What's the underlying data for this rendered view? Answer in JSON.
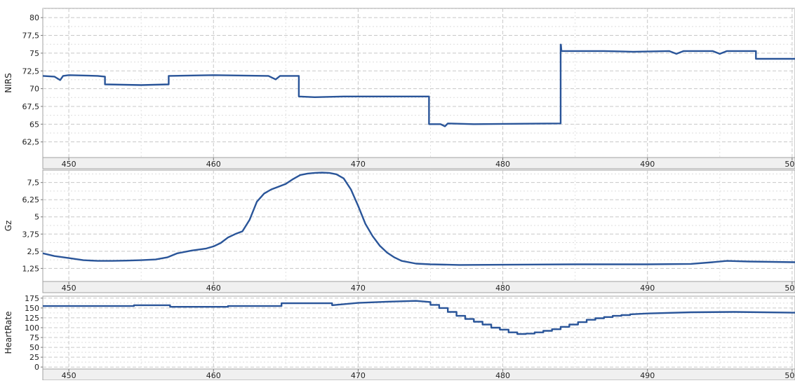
{
  "theme": {
    "line_color": "#2a5599",
    "plot_bg": "#ffffff",
    "axis_strip_bg": "#f0f0f0",
    "grid_color": "#c8c8c8",
    "border_color": "#a0a0a0"
  },
  "chart_data": [
    {
      "type": "line",
      "ylabel": "NIRS",
      "xlim": [
        448.2,
        500.2
      ],
      "ylim": [
        60.3,
        81.3
      ],
      "yticks": [
        62.5,
        65,
        67.5,
        70,
        72.5,
        75,
        77.5,
        80
      ],
      "ytick_labels": [
        "62,5",
        "65",
        "67,5",
        "70",
        "72,5",
        "75",
        "77,5",
        "80"
      ],
      "xticks": [
        450,
        460,
        470,
        480,
        490,
        500
      ],
      "xtick_labels": [
        "450",
        "460",
        "470",
        "480",
        "490",
        "500"
      ],
      "grid": true,
      "series": [
        {
          "x": [
            448.2,
            449.0,
            449.4,
            449.6,
            450.0,
            452.0,
            452.5,
            452.5,
            455.0,
            456.9,
            456.9,
            460.0,
            463.8,
            464.3,
            464.6,
            465.9,
            465.9,
            467.0,
            469.0,
            474.9,
            474.9,
            475.7,
            476.0,
            476.2,
            478.0,
            484.0,
            484.0,
            484.02,
            484.05,
            487.0,
            489.0,
            491.5,
            492.0,
            492.5,
            494.5,
            495.0,
            495.5,
            497.5,
            497.5,
            500.2
          ],
          "y": [
            71.8,
            71.7,
            71.2,
            71.8,
            71.9,
            71.8,
            71.7,
            70.6,
            70.5,
            70.6,
            71.8,
            71.9,
            71.8,
            71.3,
            71.8,
            71.8,
            68.9,
            68.8,
            68.9,
            68.9,
            65.0,
            65.0,
            64.7,
            65.1,
            65.0,
            65.1,
            76.2,
            76.2,
            75.3,
            75.3,
            75.2,
            75.3,
            74.9,
            75.3,
            75.3,
            74.9,
            75.3,
            75.3,
            74.2,
            74.2
          ]
        }
      ]
    },
    {
      "type": "line",
      "ylabel": "Gz",
      "xlim": [
        448.2,
        500.2
      ],
      "ylim": [
        0.3,
        8.4
      ],
      "yticks": [
        1.25,
        2.5,
        3.75,
        5,
        6.25,
        7.5
      ],
      "ytick_labels": [
        "1,25",
        "2,5",
        "3,75",
        "5",
        "6,25",
        "7,5"
      ],
      "xticks": [
        450,
        460,
        470,
        480,
        490,
        500
      ],
      "xtick_labels": [
        "450",
        "460",
        "470",
        "480",
        "490",
        "500"
      ],
      "grid": true,
      "series": [
        {
          "x": [
            448.2,
            449.0,
            450.0,
            451.0,
            452.0,
            453.0,
            454.0,
            455.0,
            456.0,
            456.8,
            457.5,
            458.5,
            459.5,
            460.0,
            460.5,
            461.0,
            461.5,
            462.0,
            462.5,
            463.0,
            463.5,
            464.0,
            464.5,
            465.0,
            465.5,
            466.0,
            466.5,
            467.0,
            467.5,
            468.0,
            468.5,
            469.0,
            469.5,
            470.0,
            470.5,
            471.0,
            471.5,
            472.0,
            472.5,
            473.0,
            474.0,
            475.0,
            477.0,
            480.0,
            485.0,
            490.0,
            493.0,
            494.5,
            495.5,
            497.0,
            500.2
          ],
          "y": [
            2.35,
            2.15,
            2.0,
            1.85,
            1.8,
            1.8,
            1.82,
            1.85,
            1.9,
            2.05,
            2.35,
            2.55,
            2.7,
            2.85,
            3.1,
            3.5,
            3.75,
            3.95,
            4.8,
            6.1,
            6.7,
            7.0,
            7.2,
            7.4,
            7.75,
            8.05,
            8.15,
            8.2,
            8.22,
            8.2,
            8.1,
            7.8,
            7.0,
            5.8,
            4.5,
            3.6,
            2.9,
            2.4,
            2.05,
            1.8,
            1.6,
            1.55,
            1.5,
            1.52,
            1.55,
            1.55,
            1.58,
            1.7,
            1.8,
            1.75,
            1.7
          ]
        }
      ]
    },
    {
      "type": "line",
      "ylabel": "HeartRate",
      "xlim": [
        448.2,
        500.2
      ],
      "ylim": [
        -5,
        180
      ],
      "yticks": [
        0,
        25,
        50,
        75,
        100,
        125,
        150,
        175
      ],
      "ytick_labels": [
        "0",
        "25",
        "50",
        "75",
        "100",
        "125",
        "150",
        "175"
      ],
      "xticks": [
        450,
        460,
        470,
        480,
        490,
        500
      ],
      "xtick_labels": [
        "450",
        "460",
        "470",
        "480",
        "490",
        "500"
      ],
      "grid": true,
      "series": [
        {
          "x": [
            448.2,
            454.5,
            454.5,
            457.0,
            457.0,
            461.0,
            461.0,
            464.7,
            464.7,
            468.2,
            468.2,
            470.0,
            472.0,
            474.0,
            475.0,
            475.0,
            475.6,
            475.6,
            476.2,
            476.2,
            476.8,
            476.8,
            477.4,
            477.4,
            478.0,
            478.0,
            478.6,
            478.6,
            479.2,
            479.2,
            479.8,
            479.8,
            480.4,
            480.4,
            481.0,
            481.0,
            481.6,
            481.6,
            482.2,
            482.2,
            482.8,
            482.8,
            483.4,
            483.4,
            484.0,
            484.0,
            484.6,
            484.6,
            485.2,
            485.2,
            485.8,
            485.8,
            486.4,
            486.4,
            487.0,
            487.0,
            487.6,
            487.6,
            488.2,
            488.2,
            488.8,
            488.8,
            490.0,
            493.0,
            496.0,
            500.2
          ],
          "y": [
            155,
            155,
            157,
            157,
            153,
            153,
            155,
            155,
            162,
            162,
            157,
            163,
            166,
            168,
            165,
            158,
            158,
            150,
            150,
            140,
            140,
            130,
            130,
            122,
            122,
            115,
            115,
            108,
            108,
            100,
            100,
            95,
            95,
            88,
            88,
            84,
            84,
            85,
            85,
            88,
            88,
            92,
            92,
            96,
            96,
            102,
            102,
            108,
            108,
            114,
            114,
            120,
            120,
            124,
            124,
            127,
            127,
            130,
            130,
            132,
            132,
            134,
            136,
            139,
            140,
            138
          ]
        }
      ]
    }
  ]
}
